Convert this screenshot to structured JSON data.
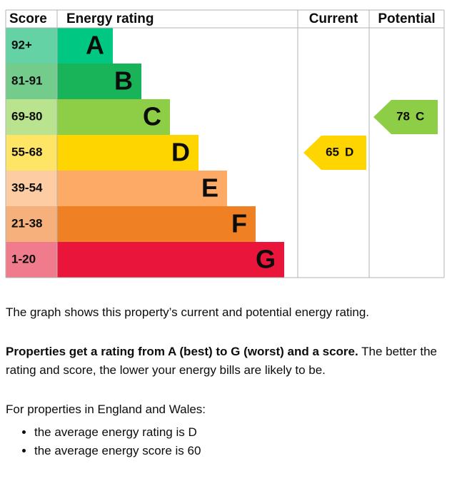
{
  "graph": {
    "headers": [
      "Score",
      "Energy rating",
      "Current",
      "Potential"
    ],
    "rows": [
      {
        "score": "92+",
        "letter": "A",
        "color": "#00c781",
        "light": "#64d2a4"
      },
      {
        "score": "81-91",
        "letter": "B",
        "color": "#19b459",
        "light": "#73cc8b"
      },
      {
        "score": "69-80",
        "letter": "C",
        "color": "#8dce46",
        "light": "#bae38f"
      },
      {
        "score": "55-68",
        "letter": "D",
        "color": "#ffd500",
        "light": "#ffe566"
      },
      {
        "score": "39-54",
        "letter": "E",
        "color": "#fcaa65",
        "light": "#fdcca3"
      },
      {
        "score": "21-38",
        "letter": "F",
        "color": "#ef8023",
        "light": "#f5b07b"
      },
      {
        "score": "1-20",
        "letter": "G",
        "color": "#e9153b",
        "light": "#f07b8d"
      }
    ],
    "current": {
      "value": 65,
      "letter": "D"
    },
    "potential": {
      "value": 78,
      "letter": "C"
    }
  },
  "text": {
    "intro": "The graph shows this property’s current and potential energy rating.",
    "bold": "Properties get a rating from A (best) to G (worst) and a score.",
    "rest": "The better the rating and score, the lower your energy bills are likely to be.",
    "region": "For properties in England and Wales:",
    "bullets": [
      "the average energy rating is D",
      "the average energy score is 60"
    ]
  }
}
